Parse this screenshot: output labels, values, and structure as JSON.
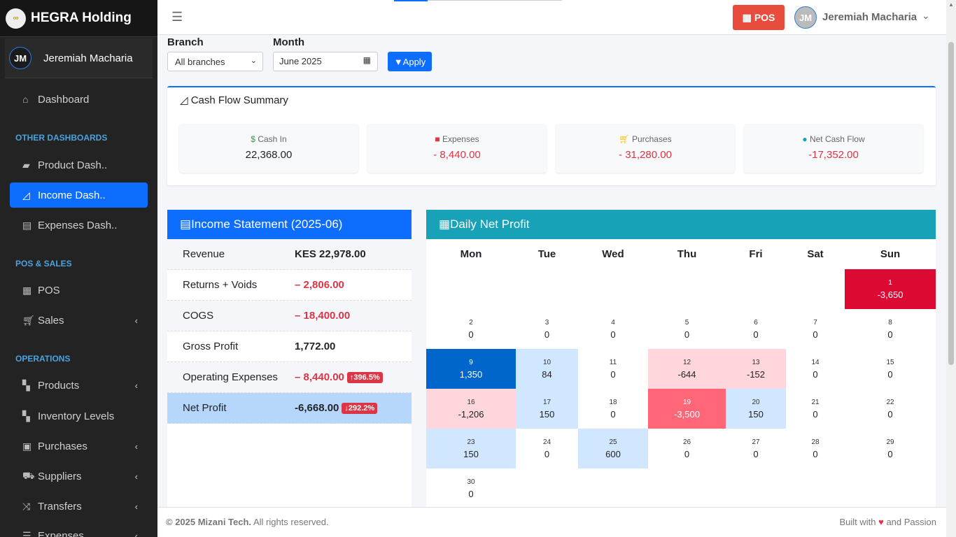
{
  "brand": {
    "name": "HEGRA Holding",
    "logo_text": "HEGRA"
  },
  "user": {
    "initials": "JM",
    "name": "Jeremiah Macharia"
  },
  "sidebar": {
    "items": [
      {
        "label": "Dashboard",
        "icon": "home-icon"
      },
      {
        "label": "Product Dash..",
        "icon": "box-icon"
      },
      {
        "label": "Income Dash..",
        "icon": "chart-area-icon",
        "active": true
      },
      {
        "label": "Expenses Dash..",
        "icon": "receipt-icon"
      },
      {
        "label": "POS",
        "icon": "cash-register-icon"
      },
      {
        "label": "Sales",
        "icon": "cart-icon"
      },
      {
        "label": "Products",
        "icon": "boxes-icon"
      },
      {
        "label": "Inventory Levels",
        "icon": "boxes-icon"
      },
      {
        "label": "Purchases",
        "icon": "money-bill-icon"
      },
      {
        "label": "Suppliers",
        "icon": "truck-icon"
      },
      {
        "label": "Transfers",
        "icon": "shuffle-icon"
      },
      {
        "label": "Expenses",
        "icon": "bars-icon"
      }
    ],
    "sections": [
      "OTHER DASHBOARDS",
      "POS & SALES",
      "OPERATIONS"
    ]
  },
  "header": {
    "pos_label": "POS",
    "user_initials": "JM",
    "user_name": "Jeremiah Macharia"
  },
  "filters": {
    "branch_label": "Branch",
    "branch_value": "All branches",
    "month_label": "Month",
    "month_value": "June 2025",
    "apply_label": "Apply"
  },
  "cashflow": {
    "title": "Cash Flow Summary",
    "tiles": [
      {
        "label": "Cash In",
        "value": "22,368.00",
        "icon": "hand-holding-dollar-icon",
        "color": "#28a745"
      },
      {
        "label": "Expenses",
        "value": "- 8,440.00",
        "icon": "wallet-icon",
        "color": "#dc3545"
      },
      {
        "label": "Purchases",
        "value": "- 31,280.00",
        "icon": "cart-icon",
        "color": "#ffc107"
      },
      {
        "label": "Net Cash Flow",
        "value": "-17,352.00",
        "icon": "piggy-bank-icon",
        "color": "#17a2b8"
      }
    ]
  },
  "income": {
    "title": "Income Statement (2025-06)",
    "rows": [
      {
        "label": "Revenue",
        "value": "KES 22,978.00"
      },
      {
        "label": "Returns + Voids",
        "value": "– 2,806.00",
        "neg": true
      },
      {
        "label": "COGS",
        "value": "– 18,400.00",
        "neg": true
      },
      {
        "label": "Gross Profit",
        "value": "1,772.00"
      },
      {
        "label": "Operating Expenses",
        "value": "– 8,440.00",
        "neg": true,
        "badge": "396.5%",
        "badge_dir": "up"
      },
      {
        "label": "Net Profit",
        "value": "-6,668.00",
        "badge": "292.2%",
        "badge_dir": "down",
        "highlight": true
      }
    ]
  },
  "calendar": {
    "title": "Daily Net Profit",
    "weekdays": [
      "Mon",
      "Tue",
      "Wed",
      "Thu",
      "Fri",
      "Sat",
      "Sun"
    ],
    "colors": {
      "strong_pos": "#0066cc",
      "pos": "#d1e7ff",
      "neg": "#ffd6dc",
      "mid_neg": "#ff6678",
      "strong_neg": "#dc0a33"
    },
    "weeks": [
      [
        null,
        null,
        null,
        null,
        null,
        null,
        {
          "day": "1",
          "value": "-3,650",
          "level": "strong_neg"
        }
      ],
      [
        {
          "day": "2",
          "value": "0"
        },
        {
          "day": "3",
          "value": "0"
        },
        {
          "day": "4",
          "value": "0"
        },
        {
          "day": "5",
          "value": "0"
        },
        {
          "day": "6",
          "value": "0"
        },
        {
          "day": "7",
          "value": "0"
        },
        {
          "day": "8",
          "value": "0"
        }
      ],
      [
        {
          "day": "9",
          "value": "1,350",
          "level": "strong_pos"
        },
        {
          "day": "10",
          "value": "84",
          "level": "pos"
        },
        {
          "day": "11",
          "value": "0"
        },
        {
          "day": "12",
          "value": "-644",
          "level": "neg"
        },
        {
          "day": "13",
          "value": "-152",
          "level": "neg"
        },
        {
          "day": "14",
          "value": "0"
        },
        {
          "day": "15",
          "value": "0"
        }
      ],
      [
        {
          "day": "16",
          "value": "-1,206",
          "level": "neg"
        },
        {
          "day": "17",
          "value": "150",
          "level": "pos"
        },
        {
          "day": "18",
          "value": "0"
        },
        {
          "day": "19",
          "value": "-3,500",
          "level": "mid_neg"
        },
        {
          "day": "20",
          "value": "150",
          "level": "pos"
        },
        {
          "day": "21",
          "value": "0"
        },
        {
          "day": "22",
          "value": "0"
        }
      ],
      [
        {
          "day": "23",
          "value": "150",
          "level": "pos"
        },
        {
          "day": "24",
          "value": "0"
        },
        {
          "day": "25",
          "value": "600",
          "level": "pos"
        },
        {
          "day": "26",
          "value": "0"
        },
        {
          "day": "27",
          "value": "0"
        },
        {
          "day": "28",
          "value": "0"
        },
        {
          "day": "29",
          "value": "0"
        }
      ],
      [
        {
          "day": "30",
          "value": "0"
        },
        null,
        null,
        null,
        null,
        null,
        null
      ]
    ]
  },
  "footer": {
    "copyright": "© 2025 Mizani Tech.",
    "rights": "All rights reserved.",
    "built_pre": "Built with",
    "built_post": "and Passion"
  }
}
